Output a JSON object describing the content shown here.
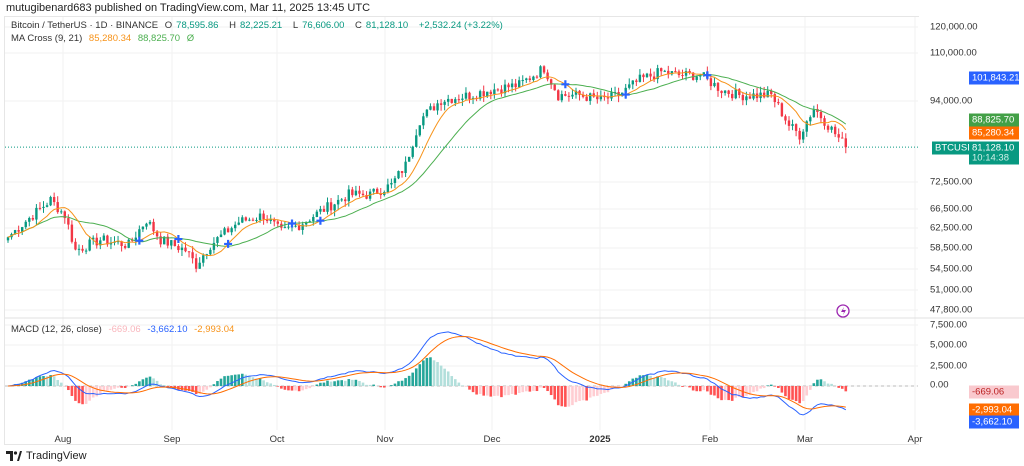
{
  "header": {
    "published": "mutugibenard683 published on TradingView.com, Mar 11, 2025 13:45 UTC"
  },
  "legend": {
    "symbol": "Bitcoin / TetherUS · 1D · BINANCE",
    "o_label": "O",
    "o": "78,595.86",
    "h_label": "H",
    "h": "82,225.21",
    "l_label": "L",
    "l": "76,606.00",
    "c_label": "C",
    "c": "81,128.10",
    "change": "+2,532.24 (+3.22%)",
    "ma_title": "MA Cross (9, 21)",
    "ma_fast": "85,280.34",
    "ma_slow": "88,825.70",
    "ma_icon": "Ø",
    "macd_title": "MACD (12, 26, close)",
    "macd_hist": "-669.06",
    "macd_line": "-3,662.10",
    "macd_signal": "-2,993.04"
  },
  "price_axis": [
    "120,000.00",
    "110,000.00",
    "94,000.00",
    "72,500.00",
    "66,500.00",
    "62,500.00",
    "58,500.00",
    "54,500.00",
    "51,000.00",
    "47,800.00"
  ],
  "macd_axis": [
    "7,500.00",
    "5,000.00",
    "2,500.00",
    "0.00"
  ],
  "tags": {
    "prev_high": "101,843.21",
    "ma_slow": "88,825.70",
    "ma_fast": "85,280.34",
    "symbol": "BTCUSDT",
    "price": "81,128.10",
    "countdown": "10:14:38",
    "hist": "-669.06",
    "signal": "-2,993.04",
    "macd": "-3,662.10"
  },
  "x_axis": [
    "Aug",
    "Sep",
    "Oct",
    "Nov",
    "Dec",
    "2025",
    "Feb",
    "Mar",
    "Apr"
  ],
  "footer": {
    "logo": "TradingView"
  },
  "colors": {
    "up": "#089981",
    "down": "#f23645",
    "ma_fast": "#f7931a",
    "ma_slow": "#4caf50",
    "macd": "#2962ff",
    "signal": "#ff6d00"
  },
  "chart_data": {
    "type": "candlestick",
    "title": "Bitcoin / TetherUS 1D",
    "scale": "log",
    "ylim": [
      47800,
      120000
    ],
    "anchor_days": [
      0,
      12,
      16,
      19,
      26,
      34,
      39,
      43,
      50,
      53,
      57,
      65,
      72,
      77,
      82,
      91,
      96,
      102,
      108,
      112,
      116,
      122,
      130,
      136,
      144,
      151,
      155,
      161,
      167,
      172,
      178,
      184,
      189,
      195,
      201,
      206,
      215,
      220,
      223,
      227,
      231,
      236
    ],
    "anchor_closes": [
      60500,
      68300,
      65000,
      58000,
      60000,
      59000,
      64000,
      60000,
      58000,
      55300,
      59000,
      63600,
      65000,
      61500,
      63000,
      67200,
      69500,
      69500,
      71700,
      76500,
      88600,
      94600,
      96100,
      97800,
      99400,
      105000,
      96100,
      96100,
      94600,
      96100,
      101000,
      103700,
      102600,
      102600,
      97800,
      96100,
      96100,
      87200,
      84400,
      92200,
      87200,
      81128
    ],
    "macd_ylim": [
      -4500,
      7500
    ]
  }
}
